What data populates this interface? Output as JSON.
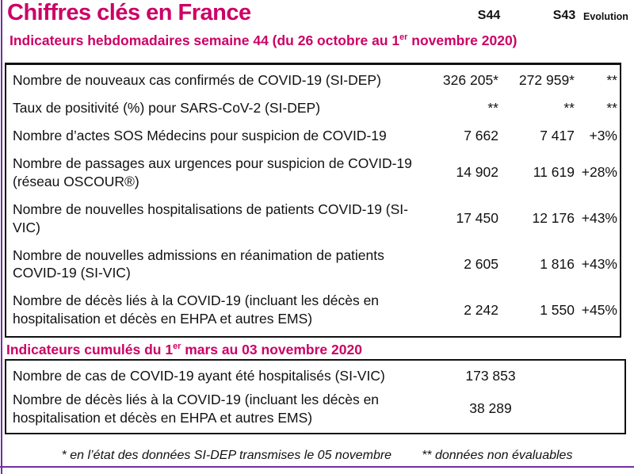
{
  "title": "Chiffres clés en France",
  "columns": {
    "s44": "S44",
    "s43": "S43",
    "evolution": "Evolution"
  },
  "weekly": {
    "heading": {
      "prefix": "Indicateurs hebdomadaires semaine 44 (du 26 octobre au 1",
      "sup": "er",
      "suffix": " novembre 2020)"
    },
    "rows": [
      {
        "label": "Nombre de nouveaux cas confirmés de COVID-19 (SI-DEP)",
        "s44": "326 205*",
        "s43": "272 959*",
        "evolution": "**"
      },
      {
        "label": "Taux de positivité (%) pour SARS-CoV-2 (SI-DEP)",
        "s44": "**",
        "s43": "**",
        "evolution": "**"
      },
      {
        "label": "Nombre d’actes SOS Médecins pour suspicion de COVID-19",
        "s44": "7 662",
        "s43": "7 417",
        "evolution": "+3%"
      },
      {
        "label": "Nombre de passages aux urgences pour suspicion de COVID-19 (réseau OSCOUR®)",
        "s44": "14 902",
        "s43": "11 619",
        "evolution": "+28%"
      },
      {
        "label": "Nombre de nouvelles hospitalisations de patients COVID-19 (SI-VIC)",
        "s44": "17 450",
        "s43": "12 176",
        "evolution": "+43%"
      },
      {
        "label": "Nombre de nouvelles admissions en réanimation de patients COVID-19 (SI-VIC)",
        "s44": "2 605",
        "s43": "1 816",
        "evolution": "+43%"
      },
      {
        "label": "Nombre de décès liés à la COVID-19 (incluant les décès en hospitalisation et décès en EHPA et autres EMS)",
        "s44": "2 242",
        "s43": "1 550",
        "evolution": "+45%"
      }
    ]
  },
  "cumulative": {
    "heading": {
      "prefix": "Indicateurs cumulés du 1",
      "sup": "er",
      "suffix": " mars au 03 novembre 2020"
    },
    "rows": [
      {
        "label": "Nombre de cas de COVID-19 ayant été hospitalisés (SI-VIC)",
        "value": "173 853"
      },
      {
        "label": "Nombre de décès liés à la COVID-19 (incluant les décès en hospitalisation et décès en EHPA et autres EMS)",
        "value": "38 289"
      }
    ]
  },
  "footnotes": {
    "note1": "* en l’état des données SI-DEP transmises le 05 novembre",
    "note2": "** données non évaluables"
  },
  "colors": {
    "accent": "#cc0066",
    "rule": "#7030a0",
    "border": "#111111"
  }
}
